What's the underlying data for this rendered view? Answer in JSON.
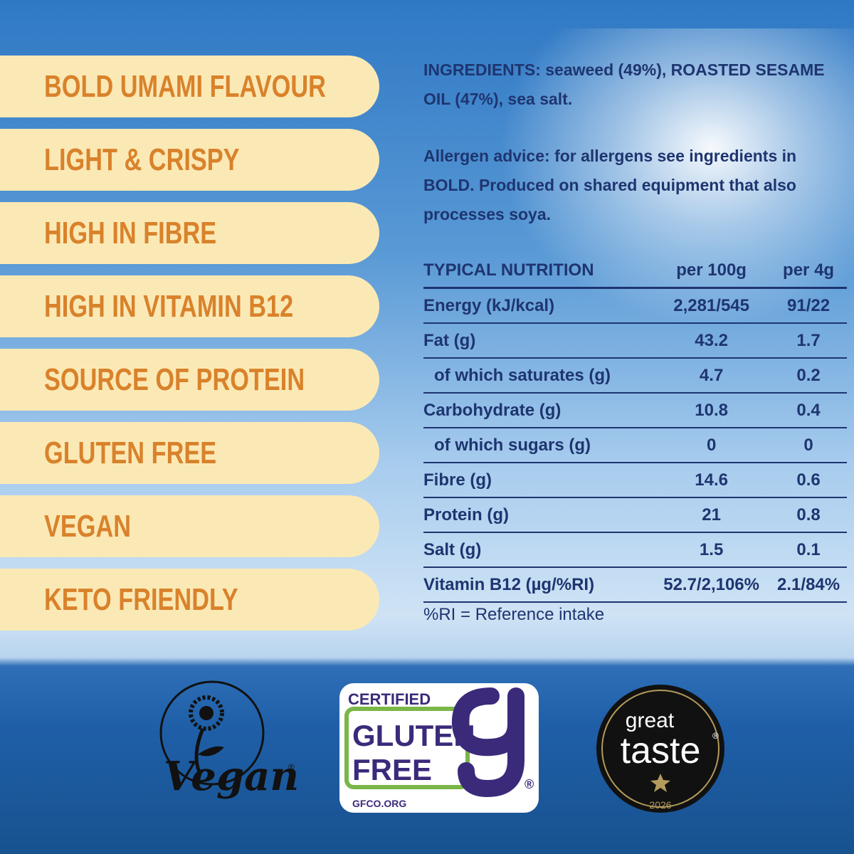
{
  "features": [
    "BOLD UMAMI FLAVOUR",
    "LIGHT & CRISPY",
    "HIGH IN FIBRE",
    "HIGH IN VITAMIN B12",
    "SOURCE OF PROTEIN",
    "GLUTEN FREE",
    "VEGAN",
    "KETO FRIENDLY"
  ],
  "ingredients": "INGREDIENTS: seaweed (49%), ROASTED SESAME OIL (47%), sea salt.",
  "allergen_advice": "Allergen advice: for allergens see ingredients in BOLD. Produced on shared equipment that also processes soya.",
  "nutrition": {
    "header": [
      "TYPICAL NUTRITION",
      "per 100g",
      "per 4g"
    ],
    "rows": [
      [
        "Energy (kJ/kcal)",
        "2,281/545",
        "91/22"
      ],
      [
        "Fat (g)",
        "43.2",
        "1.7"
      ],
      [
        "of which saturates (g)",
        "4.7",
        "0.2"
      ],
      [
        "Carbohydrate (g)",
        "10.8",
        "0.4"
      ],
      [
        "of which sugars (g)",
        "0",
        "0"
      ],
      [
        "Fibre (g)",
        "14.6",
        "0.6"
      ],
      [
        "Protein (g)",
        "21",
        "0.8"
      ],
      [
        "Salt (g)",
        "1.5",
        "0.1"
      ],
      [
        "Vitamin B12 (µg/%RI)",
        "52.7/2,106%",
        "2.1/84%"
      ]
    ],
    "footnote": "%RI = Reference intake"
  },
  "logos": {
    "vegan": {
      "text": "Vegan",
      "mark": "®"
    },
    "gluten_free": {
      "certified": "CERTIFIED",
      "line1": "GLUTEN",
      "line2": "FREE",
      "site": "GFCO.ORG",
      "mark": "®"
    },
    "great_taste": {
      "line1": "great",
      "line2": "taste",
      "year": "2026",
      "mark": "®"
    }
  }
}
